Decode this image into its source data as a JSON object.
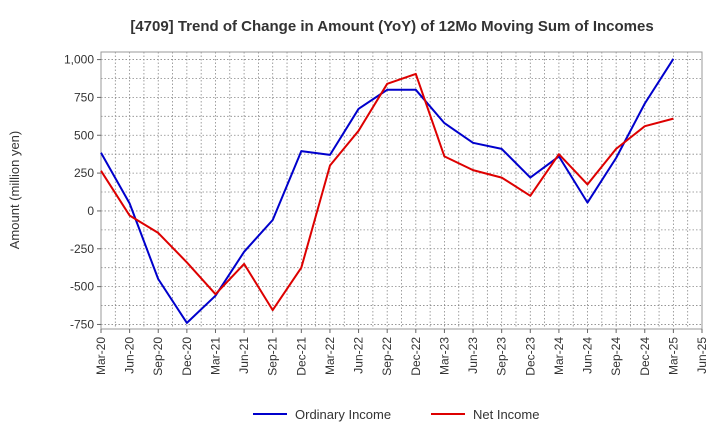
{
  "chart_data": {
    "type": "line",
    "title": "[4709]  Trend of Change in Amount (YoY) of 12Mo Moving Sum of Incomes",
    "xlabel": "",
    "ylabel": "Amount (million yen)",
    "ylim": [
      -780,
      1050
    ],
    "yticks": [
      -750,
      -500,
      -250,
      0,
      250,
      500,
      750,
      1000
    ],
    "ytick_labels": [
      "-750",
      "-500",
      "-250",
      "0",
      "250",
      "500",
      "750",
      "1,000"
    ],
    "categories": [
      "Mar-20",
      "Jun-20",
      "Sep-20",
      "Dec-20",
      "Mar-21",
      "Jun-21",
      "Sep-21",
      "Dec-21",
      "Mar-22",
      "Jun-22",
      "Sep-22",
      "Dec-22",
      "Mar-23",
      "Jun-23",
      "Sep-23",
      "Dec-23",
      "Mar-24",
      "Jun-24",
      "Sep-24",
      "Dec-24",
      "Mar-25",
      "Jun-25"
    ],
    "grid": true,
    "legend_position": "bottom",
    "series": [
      {
        "name": "Ordinary Income",
        "color": "#0000cc",
        "values": [
          385,
          50,
          -450,
          -740,
          -560,
          -270,
          -60,
          395,
          370,
          675,
          800,
          800,
          580,
          450,
          410,
          220,
          360,
          55,
          350,
          710,
          1005,
          null
        ]
      },
      {
        "name": "Net Income",
        "color": "#dd0000",
        "values": [
          265,
          -30,
          -145,
          -340,
          -550,
          -350,
          -655,
          -375,
          300,
          530,
          840,
          905,
          360,
          270,
          220,
          100,
          375,
          175,
          410,
          560,
          610,
          null
        ]
      }
    ]
  }
}
